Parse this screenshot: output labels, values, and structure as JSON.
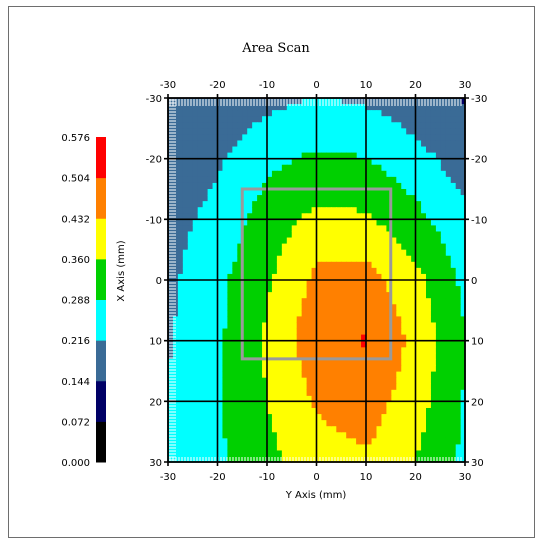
{
  "chart_data": {
    "type": "heatmap",
    "title": "Area Scan",
    "xlabel": "Y Axis (mm)",
    "ylabel": "X Axis (mm)",
    "x_range": [
      -30,
      30
    ],
    "y_range": [
      -30,
      30
    ],
    "x_ticks": [
      "-30",
      "-20",
      "-10",
      "0",
      "10",
      "20",
      "30"
    ],
    "y_ticks": [
      "-30",
      "-20",
      "-10",
      "0",
      "10",
      "20",
      "30"
    ],
    "grid": true,
    "legend": {
      "placement": "left",
      "levels": [
        "0.000",
        "0.072",
        "0.144",
        "0.216",
        "0.288",
        "0.360",
        "0.432",
        "0.504",
        "0.576"
      ],
      "colors": [
        "#000000",
        "#000066",
        "#3a6b96",
        "#00ffff",
        "#00d000",
        "#ffff00",
        "#ff8000",
        "#ff0000"
      ]
    },
    "x_values": [
      -30,
      -20,
      -10,
      0,
      10,
      20,
      30
    ],
    "y_values": [
      -30,
      -20,
      -10,
      0,
      10,
      20,
      30
    ],
    "values": [
      [
        0.144,
        0.16,
        0.196,
        0.22,
        0.205,
        0.17,
        0.14
      ],
      [
        0.15,
        0.205,
        0.27,
        0.3,
        0.29,
        0.24,
        0.18
      ],
      [
        0.19,
        0.24,
        0.32,
        0.38,
        0.37,
        0.31,
        0.23
      ],
      [
        0.2,
        0.27,
        0.35,
        0.45,
        0.46,
        0.38,
        0.27
      ],
      [
        0.21,
        0.275,
        0.37,
        0.48,
        0.51,
        0.41,
        0.29
      ],
      [
        0.22,
        0.28,
        0.36,
        0.44,
        0.47,
        0.39,
        0.28
      ],
      [
        0.225,
        0.275,
        0.34,
        0.4,
        0.42,
        0.36,
        0.27
      ]
    ],
    "inner_box": {
      "x": [
        -15,
        15
      ],
      "y": [
        -15,
        13
      ]
    }
  }
}
